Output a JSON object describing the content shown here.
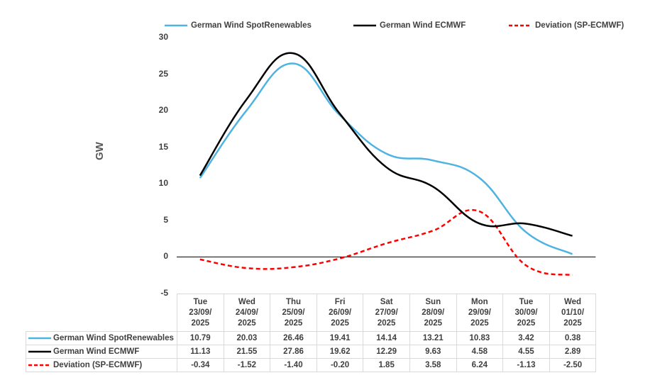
{
  "chart_data": {
    "type": "line",
    "ylabel": "GW",
    "ylim": [
      -5,
      30
    ],
    "yticks": [
      30,
      25,
      20,
      15,
      10,
      5,
      0,
      -5
    ],
    "categories": [
      {
        "day": "Tue",
        "date1": "23/09/",
        "date2": "2025"
      },
      {
        "day": "Wed",
        "date1": "24/09/",
        "date2": "2025"
      },
      {
        "day": "Thu",
        "date1": "25/09/",
        "date2": "2025"
      },
      {
        "day": "Fri",
        "date1": "26/09/",
        "date2": "2025"
      },
      {
        "day": "Sat",
        "date1": "27/09/",
        "date2": "2025"
      },
      {
        "day": "Sun",
        "date1": "28/09/",
        "date2": "2025"
      },
      {
        "day": "Mon",
        "date1": "29/09/",
        "date2": "2025"
      },
      {
        "day": "Tue",
        "date1": "30/09/",
        "date2": "2025"
      },
      {
        "day": "Wed",
        "date1": "01/10/",
        "date2": "2025"
      }
    ],
    "series": [
      {
        "name": "German Wind SpotRenewables",
        "color": "#4eb3e0",
        "dash": "solid",
        "values": [
          10.79,
          20.03,
          26.46,
          19.41,
          14.14,
          13.21,
          10.83,
          3.42,
          0.38
        ],
        "labels": [
          "10.79",
          "20.03",
          "26.46",
          "19.41",
          "14.14",
          "13.21",
          "10.83",
          "3.42",
          "0.38"
        ]
      },
      {
        "name": "German Wind ECMWF",
        "color": "#000000",
        "dash": "solid",
        "values": [
          11.13,
          21.55,
          27.86,
          19.62,
          12.29,
          9.63,
          4.58,
          4.55,
          2.89
        ],
        "labels": [
          "11.13",
          "21.55",
          "27.86",
          "19.62",
          "12.29",
          "9.63",
          "4.58",
          "4.55",
          "2.89"
        ]
      },
      {
        "name": "Deviation (SP-ECMWF)",
        "color": "#ff0000",
        "dash": "dashed",
        "values": [
          -0.34,
          -1.52,
          -1.4,
          -0.2,
          1.85,
          3.58,
          6.24,
          -1.13,
          -2.5
        ],
        "labels": [
          "-0.34",
          "-1.52",
          "-1.40",
          "-0.20",
          "1.85",
          "3.58",
          "6.24",
          "-1.13",
          "-2.50"
        ]
      }
    ]
  }
}
